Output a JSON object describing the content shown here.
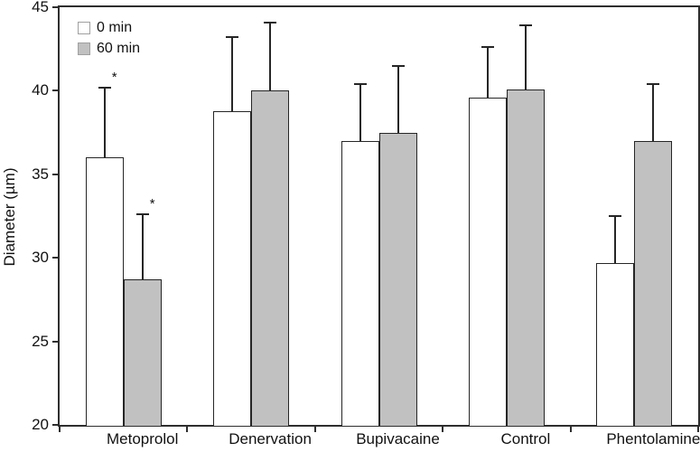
{
  "chart_data": {
    "type": "bar",
    "title": "",
    "xlabel": "",
    "ylabel": "Diameter (µm)",
    "ylim": [
      20,
      45
    ],
    "yticks": [
      20,
      25,
      30,
      35,
      40,
      45
    ],
    "grid": false,
    "categories": [
      "Metoprolol",
      "Denervation",
      "Bupivacaine",
      "Control",
      "Phentolamine"
    ],
    "legend": {
      "position": "top-left",
      "entries": [
        "0 min",
        "60 min"
      ]
    },
    "series": [
      {
        "name": "0 min",
        "fill": "#ffffff",
        "values": [
          36.0,
          38.8,
          37.0,
          39.6,
          29.7
        ],
        "errors_up": [
          4.2,
          4.4,
          3.4,
          3.0,
          2.8
        ],
        "significance": [
          "*",
          "",
          "",
          "",
          ""
        ]
      },
      {
        "name": "60 min",
        "fill": "#c1c1c1",
        "values": [
          28.7,
          40.0,
          37.5,
          40.1,
          37.0
        ],
        "errors_up": [
          3.9,
          4.1,
          4.0,
          3.8,
          3.4
        ],
        "significance": [
          "*",
          "",
          "",
          "",
          ""
        ]
      }
    ]
  },
  "colors": {
    "background": "#ffffff",
    "axis_stroke": "#2e2e2e",
    "bar_outline": "#262626",
    "white_fill": "#ffffff",
    "gray_fill": "#c1c1c1",
    "legend_swatch_border": "#a0a0a0",
    "text": "#111111"
  }
}
